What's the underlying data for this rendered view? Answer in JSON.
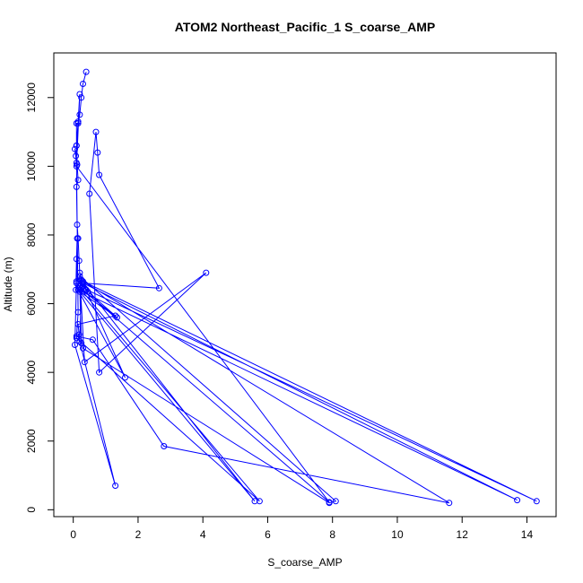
{
  "chart_data": {
    "type": "line",
    "title": "ATOM2 Northeast_Pacific_1 S_coarse_AMP",
    "xlabel": "S_coarse_AMP",
    "ylabel": "Altitude (m)",
    "xlim": [
      -0.6,
      14.9
    ],
    "ylim": [
      -200,
      13300
    ],
    "xticks": [
      0,
      2,
      4,
      6,
      8,
      10,
      12,
      14
    ],
    "yticks": [
      0,
      2000,
      4000,
      6000,
      8000,
      10000,
      12000
    ],
    "color": "#0000ff",
    "series": [
      {
        "x": [
          0.4,
          0.3,
          0.25,
          0.2,
          0.15,
          0.1,
          0.1,
          0.12,
          0.15,
          0.1,
          0.12,
          0.15,
          0.18,
          0.2,
          0.25,
          0.3,
          0.35,
          0.4,
          0.45,
          1.3,
          0.15,
          0.18,
          0.1,
          0.6,
          2.8,
          11.6,
          0.3,
          0.4,
          0.2,
          14.3,
          0.2,
          0.25,
          0.3,
          7.9,
          8.1,
          0.2,
          0.35,
          4.1,
          0.8,
          0.5,
          0.7,
          0.75,
          0.8,
          2.65,
          0.3,
          13.7,
          0.15,
          1.6,
          0.3,
          5.6,
          0.2,
          1.35,
          0.2,
          5.75,
          0.1,
          0.15,
          0.1,
          0.05,
          0.08,
          0.1,
          0.15,
          0.2,
          0.1,
          7.9,
          0.25,
          0.2,
          1.3,
          0.05,
          0.1,
          0.08,
          0.1,
          0.12,
          0.1
        ],
        "y": [
          12750,
          12400,
          12000,
          11500,
          11250,
          11250,
          10600,
          10050,
          9600,
          9400,
          8300,
          7900,
          7250,
          6900,
          6700,
          6500,
          6450,
          6400,
          6350,
          5650,
          5400,
          5100,
          5050,
          4950,
          1850,
          200,
          6650,
          6400,
          6700,
          250,
          6500,
          4850,
          4700,
          200,
          250,
          6800,
          4300,
          6900,
          4000,
          9200,
          11000,
          10400,
          9750,
          6450,
          6600,
          280,
          6400,
          3850,
          6600,
          250,
          6350,
          5600,
          6450,
          250,
          5000,
          5750,
          10100,
          10500,
          10300,
          10600,
          11300,
          12100,
          10000,
          220,
          6450,
          4900,
          700,
          4800,
          6650,
          6400,
          7300,
          7900,
          6600
        ]
      }
    ]
  }
}
